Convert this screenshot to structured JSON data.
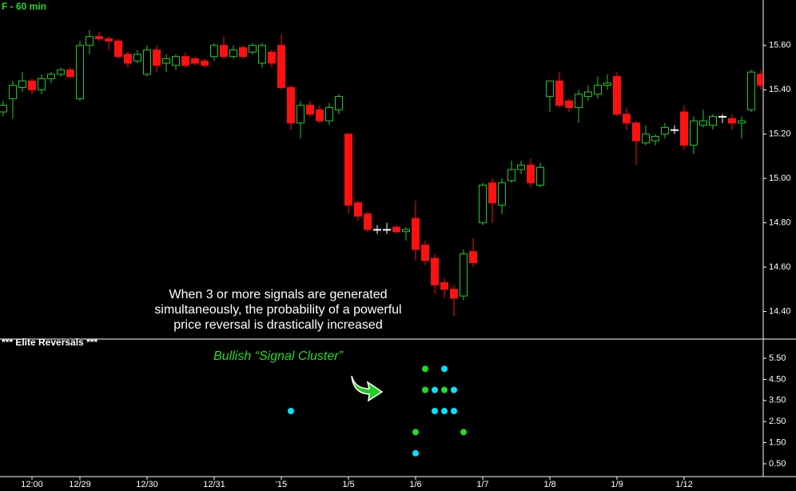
{
  "chart_data": {
    "type": "candlestick",
    "title": "F - 60 min",
    "annotation": [
      "When 3 or more signals are generated",
      "simultaneously, the probability of a powerful",
      "price reversal is drastically increased"
    ],
    "categories": [
      null,
      null,
      null,
      "12:00",
      null,
      null,
      null,
      null,
      "12/29",
      null,
      null,
      null,
      null,
      null,
      null,
      "12/30",
      null,
      null,
      null,
      null,
      null,
      null,
      "12/31",
      null,
      null,
      null,
      null,
      null,
      null,
      "'15",
      null,
      null,
      null,
      null,
      null,
      null,
      "1/5",
      null,
      null,
      null,
      null,
      null,
      null,
      "1/6",
      null,
      null,
      null,
      null,
      null,
      null,
      "1/7",
      null,
      null,
      null,
      null,
      null,
      null,
      "1/8",
      null,
      null,
      null,
      null,
      null,
      null,
      "1/9",
      null,
      null,
      null,
      null,
      null,
      null,
      "1/12",
      null,
      null,
      null,
      null,
      null,
      null,
      null,
      null
    ],
    "open": [
      15.3,
      15.36,
      15.41,
      15.44,
      15.4,
      15.45,
      15.47,
      15.49,
      15.36,
      15.6,
      15.64,
      15.63,
      15.62,
      15.56,
      15.53,
      15.47,
      15.58,
      15.52,
      15.51,
      15.55,
      15.54,
      15.53,
      15.55,
      15.6,
      15.55,
      15.59,
      15.57,
      15.52,
      15.57,
      15.6,
      15.41,
      15.25,
      15.33,
      15.31,
      15.26,
      15.31,
      15.2,
      14.89,
      14.84,
      14.77,
      14.77,
      14.78,
      14.76,
      14.82,
      14.7,
      14.64,
      14.53,
      14.5,
      14.47,
      14.67,
      14.8,
      14.98,
      14.88,
      14.99,
      15.04,
      15.06,
      14.97,
      15.37,
      15.44,
      15.35,
      15.32,
      15.37,
      15.38,
      15.42,
      15.46,
      15.29,
      15.25,
      15.16,
      15.17,
      15.2,
      15.22,
      15.3,
      15.15,
      15.24,
      15.24,
      15.28,
      15.27,
      15.25,
      15.31,
      15.47
    ],
    "high": [
      15.35,
      15.44,
      15.48,
      15.45,
      15.47,
      15.48,
      15.5,
      15.5,
      15.62,
      15.67,
      15.66,
      15.64,
      15.63,
      15.57,
      15.58,
      15.6,
      15.6,
      15.56,
      15.56,
      15.57,
      15.55,
      15.54,
      15.61,
      15.64,
      15.6,
      15.6,
      15.61,
      15.61,
      15.58,
      15.65,
      15.42,
      15.35,
      15.35,
      15.33,
      15.34,
      15.38,
      15.2,
      14.9,
      14.85,
      14.79,
      14.8,
      14.79,
      14.78,
      14.9,
      14.72,
      14.66,
      14.55,
      14.52,
      14.68,
      14.73,
      14.98,
      15.0,
      15.0,
      15.08,
      15.08,
      15.09,
      15.07,
      15.44,
      15.48,
      15.36,
      15.4,
      15.42,
      15.46,
      15.47,
      15.48,
      15.32,
      15.26,
      15.24,
      15.2,
      15.25,
      15.24,
      15.33,
      15.28,
      15.31,
      15.29,
      15.29,
      15.29,
      15.28,
      15.49,
      15.49
    ],
    "low": [
      15.28,
      15.27,
      15.39,
      15.38,
      15.38,
      15.43,
      15.46,
      15.45,
      15.35,
      15.56,
      15.62,
      15.58,
      15.54,
      15.5,
      15.52,
      15.46,
      15.48,
      15.48,
      15.49,
      15.5,
      15.51,
      15.5,
      15.53,
      15.54,
      15.54,
      15.54,
      15.56,
      15.5,
      15.5,
      15.4,
      15.22,
      15.18,
      15.28,
      15.25,
      15.24,
      15.29,
      14.84,
      14.81,
      14.76,
      14.75,
      14.75,
      14.75,
      14.72,
      14.63,
      14.61,
      14.48,
      14.46,
      14.38,
      14.45,
      14.6,
      14.79,
      14.8,
      14.84,
      14.98,
      15.02,
      14.96,
      14.96,
      15.3,
      15.32,
      15.3,
      15.25,
      15.35,
      15.36,
      15.4,
      15.28,
      15.22,
      15.06,
      15.15,
      15.15,
      15.18,
      15.2,
      15.13,
      15.11,
      15.23,
      15.22,
      15.25,
      15.22,
      15.18,
      15.3,
      15.4
    ],
    "close": [
      15.33,
      15.42,
      15.44,
      15.4,
      15.45,
      15.47,
      15.49,
      15.46,
      15.6,
      15.64,
      15.63,
      15.62,
      15.55,
      15.52,
      15.56,
      15.58,
      15.51,
      15.54,
      15.55,
      15.51,
      15.52,
      15.51,
      15.6,
      15.55,
      15.58,
      15.55,
      15.6,
      15.6,
      15.52,
      15.41,
      15.25,
      15.33,
      15.29,
      15.26,
      15.32,
      15.37,
      14.88,
      14.83,
      14.77,
      14.77,
      14.77,
      14.76,
      14.77,
      14.68,
      14.63,
      14.52,
      14.5,
      14.46,
      14.66,
      14.62,
      14.97,
      14.89,
      14.98,
      15.04,
      15.06,
      14.98,
      15.05,
      15.44,
      15.33,
      15.32,
      15.38,
      15.39,
      15.42,
      15.43,
      15.29,
      15.25,
      15.17,
      15.2,
      15.19,
      15.23,
      15.22,
      15.15,
      15.26,
      15.26,
      15.28,
      15.28,
      15.25,
      15.26,
      15.48,
      15.42
    ],
    "up_color": "#22cc22",
    "down_color": "#ff1111",
    "doji_color": "#ffffff",
    "ylim": [
      14.29,
      15.805
    ],
    "yticks": [
      {
        "value": 15.6,
        "label": "15.60"
      },
      {
        "value": 15.4,
        "label": "15.40"
      },
      {
        "value": 15.2,
        "label": "15.20"
      },
      {
        "value": 15.0,
        "label": "15.00"
      },
      {
        "value": 14.8,
        "label": "14.80"
      },
      {
        "value": 14.6,
        "label": "14.60"
      },
      {
        "value": 14.4,
        "label": "14.40"
      }
    ],
    "indicator": {
      "title": "*** Elite Reversals ***",
      "label": "Bullish “Signal Cluster”",
      "ylim": [
        -0.07,
        6.26
      ],
      "yticks": [
        {
          "value": 5.5,
          "label": "5.50"
        },
        {
          "value": 4.5,
          "label": "4.50"
        },
        {
          "value": 3.5,
          "label": "3.50"
        },
        {
          "value": 2.5,
          "label": "2.50"
        },
        {
          "value": 1.5,
          "label": "1.50"
        },
        {
          "value": 0.5,
          "label": "0.50"
        }
      ],
      "points": [
        {
          "x": 30,
          "y": 3,
          "color": "#00e5ff"
        },
        {
          "x": 43,
          "y": 2,
          "color": "#22dd22"
        },
        {
          "x": 43,
          "y": 1,
          "color": "#00e5ff"
        },
        {
          "x": 44,
          "y": 5,
          "color": "#22dd22"
        },
        {
          "x": 44,
          "y": 4,
          "color": "#22dd22"
        },
        {
          "x": 45,
          "y": 4,
          "color": "#00e5ff"
        },
        {
          "x": 45,
          "y": 3,
          "color": "#00e5ff"
        },
        {
          "x": 46,
          "y": 5,
          "color": "#00e5ff"
        },
        {
          "x": 46,
          "y": 4,
          "color": "#22dd22"
        },
        {
          "x": 46,
          "y": 3,
          "color": "#00e5ff"
        },
        {
          "x": 47,
          "y": 4,
          "color": "#00e5ff"
        },
        {
          "x": 47,
          "y": 3,
          "color": "#00e5ff"
        },
        {
          "x": 48,
          "y": 2,
          "color": "#22dd22"
        }
      ]
    }
  }
}
